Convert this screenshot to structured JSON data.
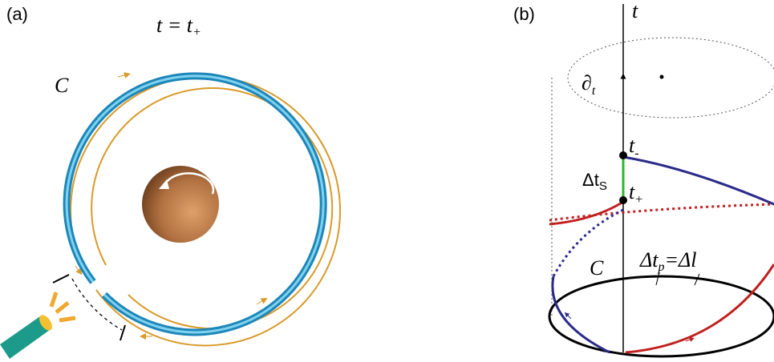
{
  "panel_a": {
    "label": "(a)",
    "title": {
      "base": "t = t",
      "sub": "+"
    },
    "curve_label": "C"
  },
  "panel_b": {
    "label": "(b)",
    "axis_label": "t",
    "killing_vector": {
      "base": "∂",
      "sub": "t"
    },
    "point_minus": {
      "base": "t",
      "sub": "-"
    },
    "point_plus": {
      "base": "t",
      "sub": "+"
    },
    "delay": {
      "base": "Δt",
      "sub": "S"
    },
    "curve_label": "C",
    "proper": {
      "base": "Δt",
      "sub": "p",
      "rest": "=Δl"
    }
  }
}
